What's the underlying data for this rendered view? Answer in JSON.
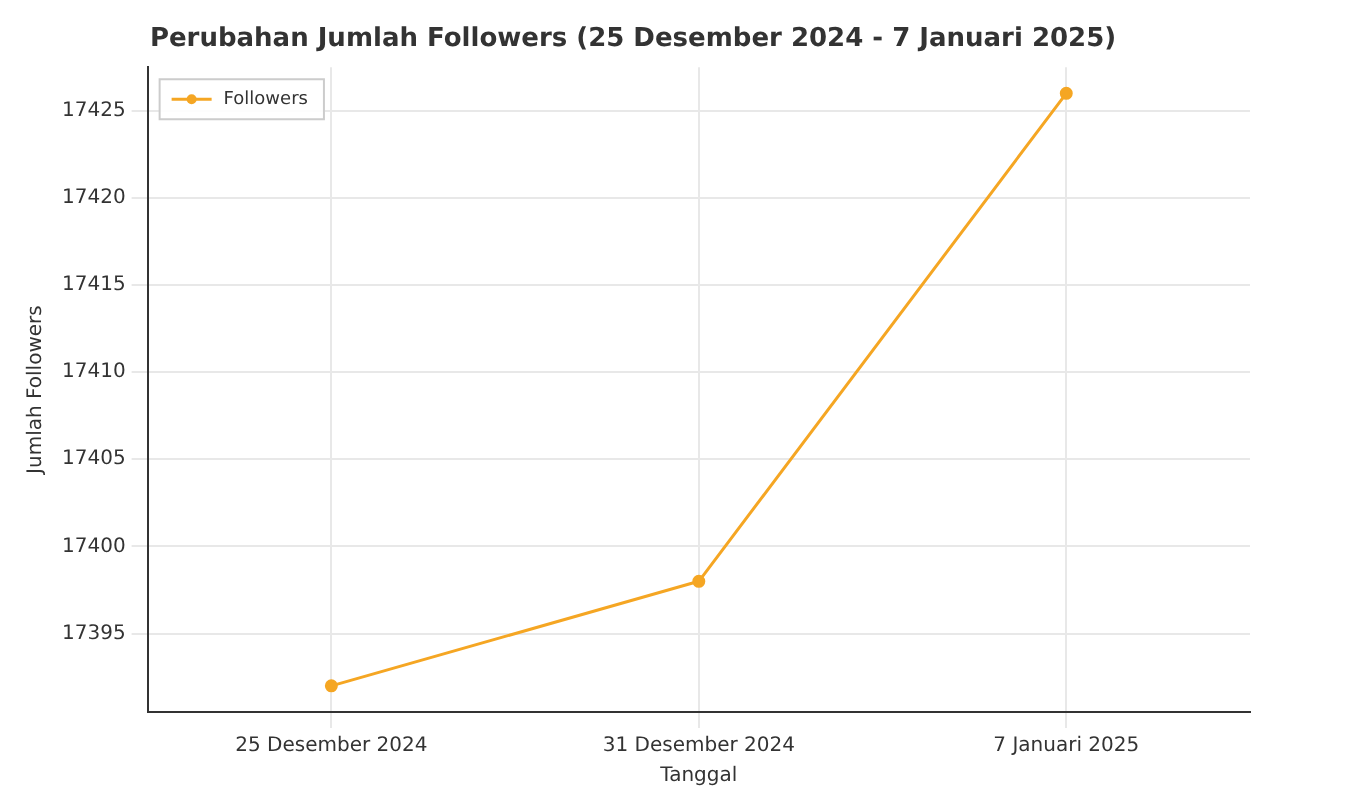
{
  "chart_data": {
    "type": "line",
    "title": "Perubahan Jumlah Followers (25 Desember 2024 - 7 Januari 2025)",
    "xlabel": "Tanggal",
    "ylabel": "Jumlah Followers",
    "categories": [
      "25 Desember 2024",
      "31 Desember 2024",
      "7 Januari 2025"
    ],
    "series": [
      {
        "name": "Followers",
        "color": "#f5a623",
        "values": [
          17392,
          17398,
          17426
        ]
      }
    ],
    "ylim": [
      17390.5,
      17427.5
    ],
    "yticks": [
      17395,
      17400,
      17405,
      17410,
      17415,
      17420,
      17425
    ],
    "grid": true,
    "legend": "top left",
    "marker": "circle",
    "line_style": "solid"
  }
}
